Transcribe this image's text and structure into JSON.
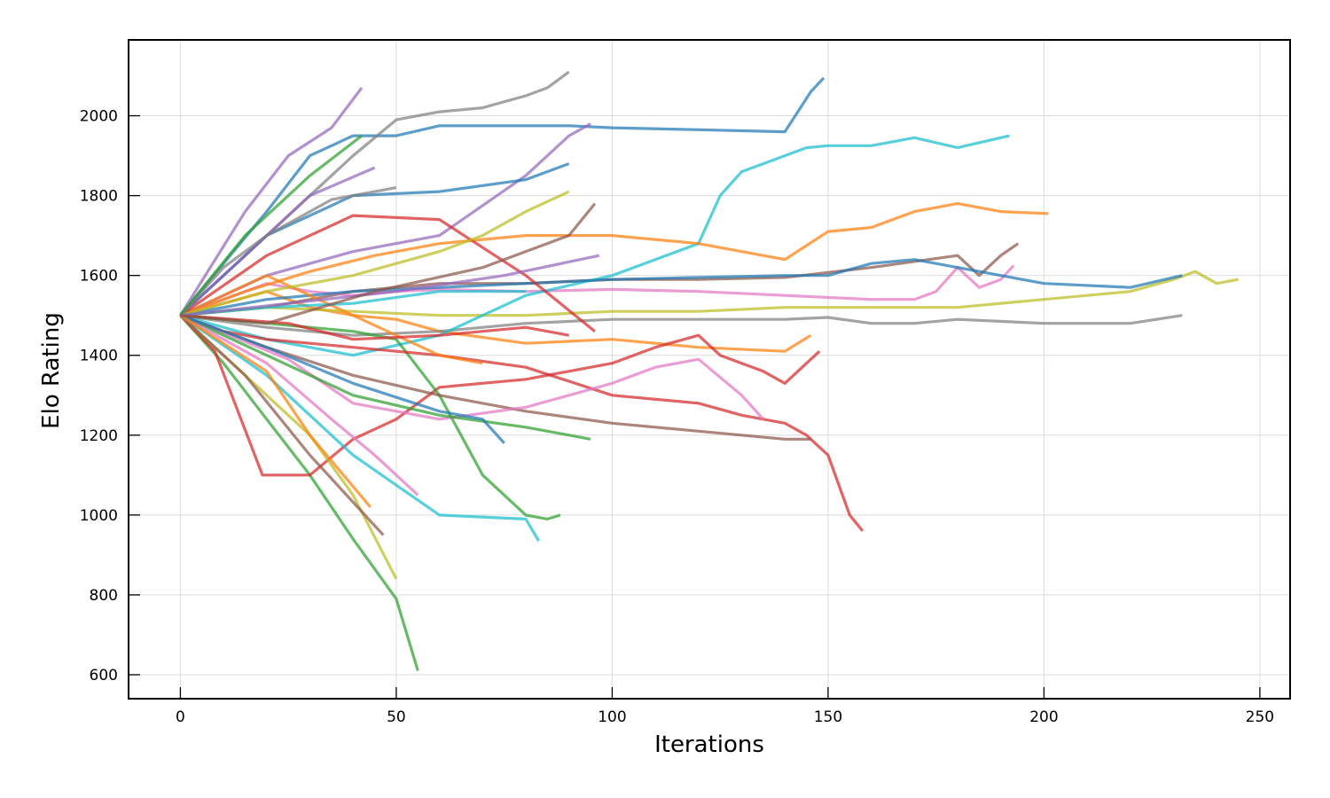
{
  "chart_data": {
    "type": "line",
    "title": "",
    "xlabel": "Iterations",
    "ylabel": "Elo Rating",
    "xlim": [
      -12,
      257
    ],
    "ylim": [
      540,
      2190
    ],
    "xticks": [
      0,
      50,
      100,
      150,
      200,
      250
    ],
    "yticks": [
      600,
      800,
      1000,
      1200,
      1400,
      1600,
      1800,
      2000
    ],
    "grid": true,
    "legend": "none",
    "palette": [
      "#1f77b4",
      "#ff7f0e",
      "#2ca02c",
      "#d62728",
      "#9467bd",
      "#8c564b",
      "#e377c2",
      "#7f7f7f",
      "#bcbd22",
      "#17becf"
    ],
    "series": [
      {
        "x": [
          0,
          20,
          30,
          40,
          50,
          60,
          90,
          100,
          120,
          140,
          143,
          146,
          149
        ],
        "y": [
          1500,
          1760,
          1900,
          1950,
          1950,
          1975,
          1975,
          1970,
          1965,
          1960,
          2010,
          2060,
          2095
        ]
      },
      {
        "x": [
          0,
          10,
          20,
          30,
          40,
          50,
          60,
          80,
          100,
          120,
          140,
          146
        ],
        "y": [
          1500,
          1530,
          1560,
          1520,
          1500,
          1490,
          1460,
          1430,
          1440,
          1420,
          1410,
          1450
        ]
      },
      {
        "x": [
          0,
          10,
          20,
          30,
          40,
          50,
          55
        ],
        "y": [
          1500,
          1380,
          1240,
          1100,
          940,
          790,
          610
        ]
      },
      {
        "x": [
          0,
          8,
          19,
          30,
          40,
          50,
          60,
          80,
          100,
          110,
          120,
          125,
          130,
          135,
          140,
          145,
          148
        ],
        "y": [
          1500,
          1410,
          1100,
          1100,
          1190,
          1240,
          1320,
          1340,
          1380,
          1420,
          1450,
          1400,
          1380,
          1360,
          1330,
          1380,
          1410
        ]
      },
      {
        "x": [
          0,
          15,
          25,
          35,
          42
        ],
        "y": [
          1500,
          1760,
          1900,
          1970,
          2070
        ]
      },
      {
        "x": [
          0,
          20,
          40,
          60,
          80,
          100,
          120,
          140,
          160,
          180,
          185,
          190,
          194
        ],
        "y": [
          1500,
          1520,
          1560,
          1580,
          1580,
          1590,
          1590,
          1595,
          1620,
          1650,
          1600,
          1650,
          1680
        ]
      },
      {
        "x": [
          0,
          10,
          20,
          30,
          40,
          50,
          60,
          80,
          100,
          120,
          140,
          160,
          170,
          175,
          180,
          185,
          190,
          193
        ],
        "y": [
          1500,
          1540,
          1580,
          1560,
          1550,
          1560,
          1565,
          1560,
          1565,
          1560,
          1550,
          1540,
          1540,
          1560,
          1620,
          1570,
          1590,
          1625
        ]
      },
      {
        "x": [
          0,
          20,
          40,
          60,
          80,
          100,
          120,
          140,
          150,
          160,
          170,
          180,
          200,
          220,
          232
        ],
        "y": [
          1500,
          1470,
          1450,
          1460,
          1480,
          1490,
          1490,
          1490,
          1495,
          1480,
          1480,
          1490,
          1480,
          1480,
          1500
        ]
      },
      {
        "x": [
          0,
          20,
          40,
          60,
          80,
          100,
          120,
          140,
          160,
          180,
          200,
          220,
          230,
          235,
          240,
          245
        ],
        "y": [
          1500,
          1520,
          1510,
          1500,
          1500,
          1510,
          1510,
          1520,
          1520,
          1520,
          1540,
          1560,
          1590,
          1610,
          1580,
          1590
        ]
      },
      {
        "x": [
          0,
          20,
          40,
          60,
          80,
          100,
          120,
          125,
          130,
          140,
          145,
          150,
          160,
          170,
          180,
          192
        ],
        "y": [
          1500,
          1440,
          1400,
          1450,
          1550,
          1600,
          1680,
          1800,
          1860,
          1900,
          1920,
          1925,
          1925,
          1945,
          1920,
          1950
        ]
      },
      {
        "x": [
          0,
          20,
          40,
          60,
          80,
          100,
          120,
          140,
          150,
          160,
          170,
          180,
          200,
          220,
          232
        ],
        "y": [
          1500,
          1540,
          1560,
          1570,
          1580,
          1590,
          1595,
          1600,
          1600,
          1630,
          1640,
          1620,
          1580,
          1570,
          1600
        ]
      },
      {
        "x": [
          0,
          15,
          30,
          45,
          60,
          80,
          100,
          120,
          140,
          150,
          160,
          170,
          180,
          190,
          201
        ],
        "y": [
          1500,
          1560,
          1610,
          1650,
          1680,
          1700,
          1700,
          1680,
          1640,
          1710,
          1720,
          1760,
          1780,
          1760,
          1755
        ]
      },
      {
        "x": [
          0,
          20,
          40,
          50,
          60,
          70,
          80,
          85,
          88
        ],
        "y": [
          1500,
          1480,
          1460,
          1440,
          1300,
          1100,
          1000,
          990,
          1000
        ]
      },
      {
        "x": [
          0,
          10,
          20,
          40,
          60,
          80,
          100,
          120,
          130,
          140,
          145,
          150,
          155,
          158
        ],
        "y": [
          1500,
          1460,
          1440,
          1420,
          1400,
          1370,
          1300,
          1280,
          1250,
          1230,
          1200,
          1150,
          1000,
          960
        ]
      },
      {
        "x": [
          0,
          20,
          40,
          60,
          80,
          90,
          95
        ],
        "y": [
          1500,
          1600,
          1660,
          1700,
          1850,
          1950,
          1980
        ]
      },
      {
        "x": [
          0,
          20,
          40,
          60,
          80,
          100,
          120,
          140,
          146
        ],
        "y": [
          1500,
          1420,
          1350,
          1300,
          1260,
          1230,
          1210,
          1190,
          1190
        ]
      },
      {
        "x": [
          0,
          25,
          40,
          60,
          80,
          100,
          110,
          120,
          130,
          135
        ],
        "y": [
          1500,
          1390,
          1280,
          1240,
          1270,
          1330,
          1370,
          1390,
          1300,
          1240
        ]
      },
      {
        "x": [
          0,
          15,
          30,
          40,
          50,
          60,
          70,
          80,
          85,
          90
        ],
        "y": [
          1500,
          1650,
          1800,
          1900,
          1990,
          2010,
          2020,
          2050,
          2070,
          2110
        ]
      },
      {
        "x": [
          0,
          20,
          30,
          40,
          50
        ],
        "y": [
          1500,
          1300,
          1200,
          1050,
          840
        ]
      },
      {
        "x": [
          0,
          20,
          40,
          60,
          80,
          83
        ],
        "y": [
          1500,
          1350,
          1150,
          1000,
          990,
          935
        ]
      },
      {
        "x": [
          0,
          20,
          40,
          60,
          80,
          90
        ],
        "y": [
          1500,
          1700,
          1800,
          1810,
          1840,
          1880
        ]
      },
      {
        "x": [
          0,
          20,
          40,
          50,
          60,
          70
        ],
        "y": [
          1500,
          1600,
          1500,
          1450,
          1400,
          1380
        ]
      },
      {
        "x": [
          0,
          20,
          40,
          60,
          80,
          95
        ],
        "y": [
          1500,
          1400,
          1300,
          1250,
          1220,
          1190
        ]
      },
      {
        "x": [
          0,
          20,
          40,
          60,
          80,
          96
        ],
        "y": [
          1500,
          1650,
          1750,
          1740,
          1600,
          1460
        ]
      },
      {
        "x": [
          0,
          15,
          30,
          45
        ],
        "y": [
          1500,
          1650,
          1800,
          1870
        ]
      },
      {
        "x": [
          0,
          15,
          30,
          47
        ],
        "y": [
          1500,
          1350,
          1150,
          950
        ]
      },
      {
        "x": [
          0,
          20,
          35,
          45,
          55
        ],
        "y": [
          1500,
          1380,
          1240,
          1150,
          1050
        ]
      },
      {
        "x": [
          0,
          10,
          20,
          35,
          50
        ],
        "y": [
          1500,
          1620,
          1700,
          1790,
          1820
        ]
      },
      {
        "x": [
          0,
          20,
          40,
          60,
          70,
          80,
          90
        ],
        "y": [
          1500,
          1560,
          1600,
          1660,
          1700,
          1760,
          1810
        ]
      },
      {
        "x": [
          0,
          20,
          40,
          60,
          80
        ],
        "y": [
          1500,
          1520,
          1530,
          1560,
          1560
        ]
      },
      {
        "x": [
          0,
          20,
          40,
          60,
          70,
          75
        ],
        "y": [
          1500,
          1420,
          1330,
          1260,
          1240,
          1180
        ]
      },
      {
        "x": [
          0,
          20,
          30,
          44
        ],
        "y": [
          1500,
          1360,
          1200,
          1020
        ]
      },
      {
        "x": [
          0,
          15,
          30,
          42
        ],
        "y": [
          1500,
          1700,
          1850,
          1950
        ]
      },
      {
        "x": [
          0,
          25,
          40,
          60,
          80,
          90
        ],
        "y": [
          1500,
          1480,
          1440,
          1450,
          1470,
          1450
        ]
      },
      {
        "x": [
          0,
          25,
          50,
          75,
          97
        ],
        "y": [
          1500,
          1530,
          1560,
          1600,
          1650
        ]
      },
      {
        "x": [
          0,
          20,
          45,
          70,
          90,
          96
        ],
        "y": [
          1500,
          1480,
          1560,
          1620,
          1700,
          1780
        ]
      }
    ]
  }
}
